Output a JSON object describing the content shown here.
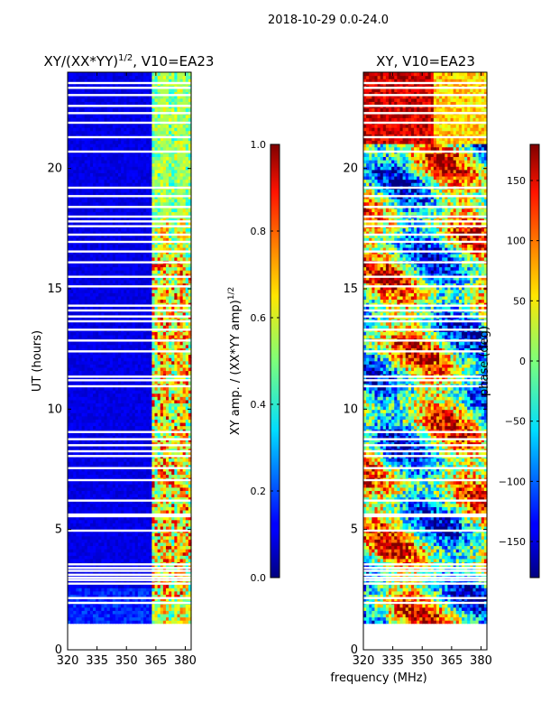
{
  "suptitle": "2018-10-29 0.0-24.0",
  "chart_data": [
    {
      "type": "heatmap",
      "title_main": "XY/(XX*YY)",
      "title_sup": "1/2",
      "title_rest": ", V10=EA23",
      "ylabel": "UT (hours)",
      "xlim": [
        320,
        383
      ],
      "ylim": [
        0,
        24
      ],
      "xticks": [
        320,
        335,
        350,
        365,
        380
      ],
      "yticks": [
        0,
        5,
        10,
        15,
        20
      ],
      "data_start_hour": 1.1,
      "colorbar": {
        "label_main": "XY amp. / (XX*YY amp)",
        "label_sup": "1/2",
        "range": [
          0.0,
          1.0
        ],
        "ticks": [
          "0.0",
          "0.2",
          "0.4",
          "0.6",
          "0.8",
          "1.0"
        ],
        "colormap": "jet"
      },
      "note": "Low normalized amplitude (~0.05-0.15) at 320-362 MHz; 0.3-0.9 in the 362-381 MHz band, with horizontal gaps of flagged data"
    },
    {
      "type": "heatmap",
      "title": "XY, V10=EA23",
      "xlim": [
        320,
        383
      ],
      "ylim": [
        0,
        24
      ],
      "xticks": [
        320,
        335,
        350,
        365,
        380
      ],
      "yticks": [
        0,
        5,
        10,
        15,
        20
      ],
      "data_start_hour": 1.1,
      "colorbar": {
        "label": "phase (deg)",
        "range": [
          -180,
          180
        ],
        "ticks": [
          "150",
          "100",
          "50",
          "0",
          "−50",
          "−100",
          "−150"
        ],
        "colormap": "jet"
      },
      "note": "Phase values spanning -180 to 180 deg across 320-383 MHz, 1-24 h"
    }
  ],
  "xlabel": "frequency (MHz)",
  "flagged_hours": [
    1.95,
    2.15,
    2.75,
    2.9,
    3.0,
    3.12,
    3.28,
    3.4,
    3.55,
    4.95,
    5.55,
    5.62,
    6.2,
    7.05,
    7.55,
    8.05,
    8.25,
    8.5,
    8.75,
    9.05,
    10.95,
    11.2,
    11.35,
    12.4,
    12.85,
    13.3,
    13.65,
    13.85,
    14.1,
    14.3,
    15.1,
    15.5,
    16.1,
    16.55,
    16.95,
    17.25,
    17.6,
    17.8,
    18.0,
    18.4,
    18.85,
    19.2,
    20.7,
    21.3,
    21.9,
    22.3,
    22.6,
    23.05,
    23.35,
    23.55
  ]
}
